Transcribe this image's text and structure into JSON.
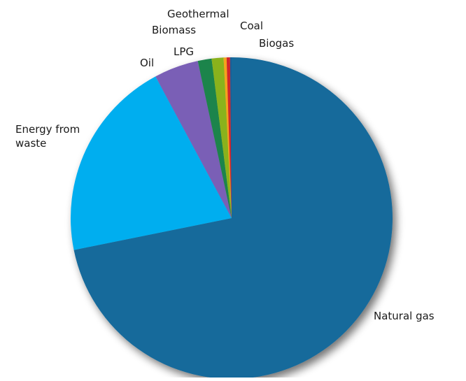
{
  "chart_data": {
    "type": "pie",
    "labels": [
      "Natural gas",
      "Energy from waste",
      "Oil",
      "LPG",
      "Biomass",
      "Geothermal",
      "Coal",
      "Biogas"
    ],
    "values": [
      72.4,
      20.5,
      4.5,
      1.4,
      1.2,
      0.3,
      0.35,
      0.15
    ],
    "colors": [
      "#196a9b",
      "#01aeef",
      "#7a5fb6",
      "#1f844b",
      "#8ab21f",
      "#f5a21c",
      "#d2262b",
      "#1c5d96"
    ],
    "start_angle_deg": 0,
    "direction": "clockwise",
    "legend": "none"
  }
}
